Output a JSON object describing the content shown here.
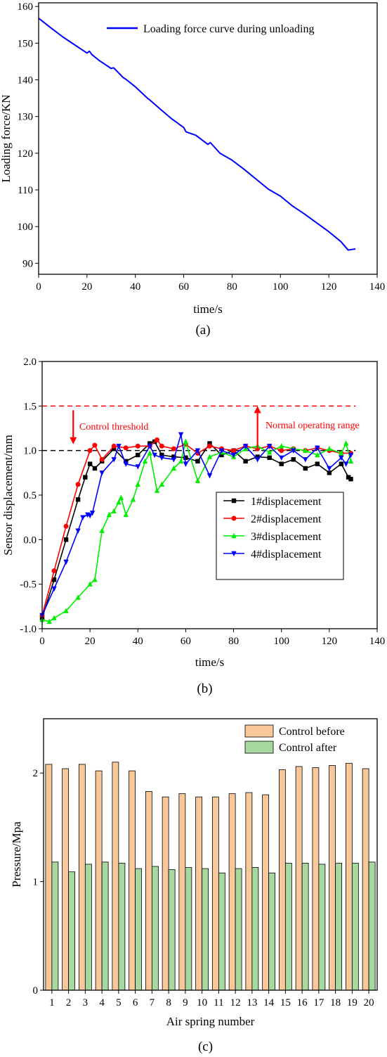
{
  "chart_data": [
    {
      "type": "line",
      "caption": "(a)",
      "xlabel": "time/s",
      "ylabel": "Loading force/KN",
      "xlim": [
        0,
        140
      ],
      "ylim": [
        87,
        161
      ],
      "xticks": [
        0,
        20,
        40,
        60,
        80,
        100,
        120,
        140
      ],
      "yticks": [
        90,
        100,
        110,
        120,
        130,
        140,
        150,
        160
      ],
      "legend_position": "top-right",
      "series": [
        {
          "name": "Loading force curve during unloading",
          "color": "#0000ff",
          "x": [
            0,
            5,
            10,
            15,
            20,
            21,
            22,
            25,
            30,
            31,
            35,
            36,
            40,
            45,
            46,
            50,
            55,
            60,
            61,
            65,
            70,
            71,
            75,
            80,
            85,
            90,
            95,
            100,
            105,
            110,
            115,
            120,
            125,
            128,
            131
          ],
          "y": [
            156.8,
            154.2,
            151.7,
            149.5,
            147.3,
            147.8,
            146.9,
            145.3,
            143.1,
            143.3,
            140.6,
            140.2,
            138.1,
            135.0,
            134.5,
            132.2,
            129.4,
            127.0,
            125.8,
            124.9,
            122.4,
            122.9,
            120.0,
            118.1,
            115.6,
            112.9,
            110.2,
            108.3,
            105.6,
            103.4,
            101.0,
            98.6,
            95.9,
            93.6,
            93.9
          ]
        }
      ]
    },
    {
      "type": "line",
      "caption": "(b)",
      "xlabel": "time/s",
      "ylabel": "Sensor displacement/mm",
      "xlim": [
        0,
        140
      ],
      "ylim": [
        -1.0,
        2.0
      ],
      "xticks": [
        0,
        20,
        40,
        60,
        80,
        100,
        120,
        140
      ],
      "yticks": [
        -1.0,
        -0.5,
        0.0,
        0.5,
        1.0,
        1.5,
        2.0
      ],
      "legend_position": "center-right",
      "reference_lines": [
        {
          "y": 1.5,
          "color": "#ff0000",
          "style": "dashed"
        },
        {
          "y": 1.0,
          "color": "#000000",
          "style": "dashed"
        }
      ],
      "annotations": [
        {
          "text": "Control threshold",
          "color": "#ff0000",
          "arrow": "down",
          "x": 13,
          "y_from": 1.5,
          "y_to": 1.07
        },
        {
          "text": "Normal operating range",
          "color": "#ff0000",
          "arrow": "up",
          "x": 90,
          "y_from": 1.0,
          "y_to": 1.5
        }
      ],
      "series": [
        {
          "name": "1#displacement",
          "color": "#000000",
          "marker": "square",
          "x": [
            0,
            5,
            10,
            15,
            18,
            20,
            22,
            25,
            30,
            35,
            40,
            45,
            47,
            50,
            55,
            60,
            65,
            70,
            75,
            80,
            85,
            90,
            95,
            100,
            105,
            110,
            115,
            120,
            125,
            128,
            129
          ],
          "y": [
            -0.88,
            -0.45,
            0.0,
            0.45,
            0.7,
            0.85,
            0.8,
            0.88,
            1.02,
            0.88,
            0.95,
            1.08,
            1.1,
            0.95,
            0.93,
            0.92,
            0.88,
            1.08,
            0.95,
            1.0,
            0.88,
            0.93,
            0.92,
            0.85,
            0.9,
            0.8,
            0.85,
            0.75,
            0.85,
            0.7,
            0.68
          ]
        },
        {
          "name": "2#displacement",
          "color": "#ff0000",
          "marker": "circle",
          "x": [
            0,
            5,
            10,
            15,
            20,
            22,
            25,
            30,
            35,
            40,
            45,
            48,
            50,
            55,
            60,
            65,
            70,
            75,
            80,
            85,
            90,
            95,
            100,
            105,
            110,
            115,
            120,
            125,
            129
          ],
          "y": [
            -0.85,
            -0.35,
            0.15,
            0.62,
            1.0,
            1.06,
            0.9,
            1.05,
            1.03,
            1.05,
            1.05,
            1.12,
            1.05,
            1.02,
            1.07,
            0.97,
            1.05,
            1.02,
            1.0,
            1.05,
            1.02,
            1.05,
            1.0,
            1.02,
            1.0,
            1.03,
            1.0,
            0.97,
            0.97
          ]
        },
        {
          "name": "3#displacement",
          "color": "#00ee00",
          "marker": "triangle-up",
          "x": [
            0,
            3,
            5,
            10,
            15,
            20,
            22,
            25,
            28,
            30,
            32,
            33,
            35,
            38,
            40,
            43,
            45,
            48,
            50,
            55,
            58,
            60,
            65,
            70,
            75,
            80,
            85,
            90,
            95,
            100,
            105,
            110,
            115,
            120,
            125,
            127,
            129
          ],
          "y": [
            -0.9,
            -0.92,
            -0.88,
            -0.8,
            -0.65,
            -0.5,
            -0.45,
            0.1,
            0.28,
            0.32,
            0.42,
            0.47,
            0.28,
            0.45,
            0.62,
            0.88,
            0.97,
            0.55,
            0.62,
            0.8,
            0.88,
            1.1,
            0.66,
            0.93,
            0.98,
            0.93,
            1.02,
            1.05,
            0.98,
            1.05,
            1.02,
            1.0,
            0.95,
            1.02,
            0.97,
            1.08,
            0.88
          ]
        },
        {
          "name": "4#displacement",
          "color": "#0000ff",
          "marker": "triangle-down",
          "x": [
            0,
            5,
            10,
            15,
            17,
            19,
            20,
            21,
            25,
            30,
            32,
            35,
            40,
            45,
            47,
            50,
            55,
            58,
            60,
            65,
            70,
            75,
            80,
            85,
            90,
            95,
            100,
            105,
            110,
            115,
            120,
            125,
            127,
            129
          ],
          "y": [
            -0.85,
            -0.55,
            -0.25,
            0.1,
            0.25,
            0.28,
            0.27,
            0.3,
            0.75,
            0.9,
            1.05,
            0.85,
            0.82,
            1.05,
            0.95,
            0.92,
            0.9,
            1.18,
            0.85,
            1.0,
            0.72,
            1.0,
            0.95,
            1.05,
            0.9,
            1.05,
            0.92,
            1.0,
            0.9,
            1.03,
            0.8,
            0.92,
            0.85,
            0.95
          ]
        }
      ]
    },
    {
      "type": "bar",
      "caption": "(c)",
      "xlabel": "Air spring number",
      "ylabel": "Pressure/Mpa",
      "ylim": [
        0,
        2.5
      ],
      "yticks": [
        0,
        1,
        2
      ],
      "legend_position": "top-right",
      "categories": [
        "1",
        "2",
        "3",
        "4",
        "5",
        "6",
        "7",
        "8",
        "9",
        "10",
        "11",
        "12",
        "13",
        "14",
        "15",
        "16",
        "17",
        "18",
        "19",
        "20"
      ],
      "series": [
        {
          "name": "Control before",
          "color": "#f8c79a",
          "values": [
            2.08,
            2.04,
            2.08,
            2.02,
            2.1,
            2.02,
            1.83,
            1.78,
            1.81,
            1.78,
            1.78,
            1.81,
            1.82,
            1.8,
            2.03,
            2.06,
            2.05,
            2.07,
            2.09,
            2.04
          ]
        },
        {
          "name": "Control after",
          "color": "#a6d8a0",
          "values": [
            1.18,
            1.09,
            1.16,
            1.18,
            1.17,
            1.12,
            1.14,
            1.11,
            1.13,
            1.12,
            1.08,
            1.12,
            1.13,
            1.08,
            1.17,
            1.17,
            1.16,
            1.17,
            1.17,
            1.18
          ]
        }
      ]
    }
  ]
}
